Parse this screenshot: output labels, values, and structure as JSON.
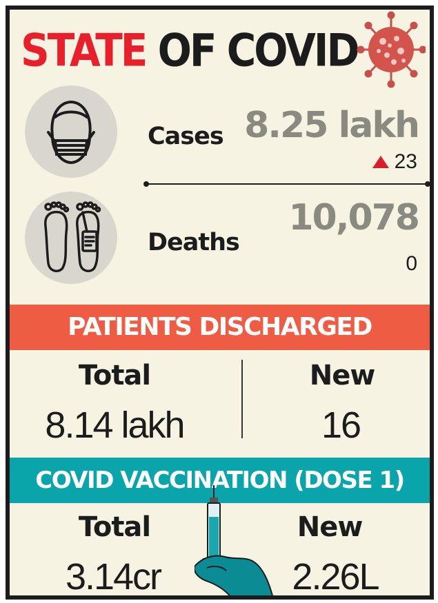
{
  "title": {
    "word1": "STATE",
    "word2": "OF COVID"
  },
  "icons": {
    "virus": "virus-icon",
    "mask_face": "face-mask-icon",
    "feet": "feet-tag-icon",
    "syringe": "syringe-hand-icon"
  },
  "cases": {
    "label": "Cases",
    "value": "8.25 lakh",
    "change": "23",
    "trend": "up"
  },
  "deaths": {
    "label": "Deaths",
    "value": "10,078",
    "change": "0"
  },
  "discharged": {
    "title": "PATIENTS DISCHARGED",
    "total_label": "Total",
    "total_value": "8.14 lakh",
    "new_label": "New",
    "new_value": "16"
  },
  "vaccination": {
    "title": "COVID VACCINATION (DOSE 1)",
    "total_label": "Total",
    "total_value": "3.14cr",
    "new_label": "New",
    "new_value": "2.26L"
  },
  "colors": {
    "red": "#e8202c",
    "banner_red": "#ee5c43",
    "teal": "#0aa5ab",
    "value_gray": "#8a8a80",
    "background": "#f7f3e3"
  }
}
